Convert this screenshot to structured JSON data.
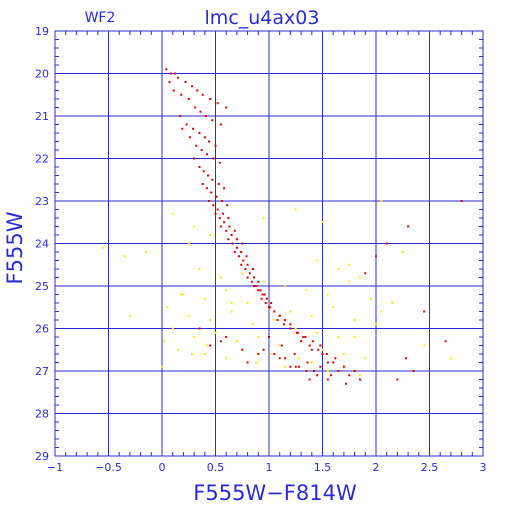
{
  "chart_data": {
    "type": "scatter",
    "title": "lmc_u4ax03",
    "panel_label": "WF2",
    "xlabel": "F555W−F814W",
    "ylabel": "F555W",
    "xlim": [
      -1,
      3
    ],
    "ylim": [
      29,
      19
    ],
    "y_inverted": true,
    "grid": true,
    "x_ticks": [
      -1,
      -0.5,
      0,
      0.5,
      1,
      1.5,
      2,
      2.5,
      3
    ],
    "x_tick_labels": [
      "−1",
      "−0.5",
      "0",
      "0.5",
      "1",
      "1.5",
      "2",
      "2.5",
      "3"
    ],
    "y_ticks": [
      19,
      20,
      21,
      22,
      23,
      24,
      25,
      26,
      27,
      28,
      29
    ],
    "y_tick_labels": [
      "19",
      "20",
      "21",
      "22",
      "23",
      "24",
      "25",
      "26",
      "27",
      "28",
      "29"
    ],
    "colors": {
      "frame": "#2b2bd6",
      "grid": "#2b2bd6",
      "series_primary": "#e00000",
      "series_secondary": "#ffea00"
    },
    "series": [
      {
        "color": "#e00000",
        "x": [
          0.04,
          0.08,
          0.12,
          0.15,
          0.22,
          0.28,
          0.33,
          0.38,
          0.45,
          0.52,
          0.6,
          0.07,
          0.11,
          0.18,
          0.25,
          0.31,
          0.36,
          0.41,
          0.47,
          0.55,
          0.17,
          0.23,
          0.29,
          0.35,
          0.4,
          0.44,
          0.5,
          0.19,
          0.26,
          0.32,
          0.37,
          0.42,
          0.48,
          0.54,
          0.3,
          0.35,
          0.39,
          0.43,
          0.47,
          0.53,
          0.58,
          0.38,
          0.42,
          0.46,
          0.51,
          0.56,
          0.61,
          0.44,
          0.48,
          0.52,
          0.57,
          0.62,
          0.5,
          0.54,
          0.58,
          0.63,
          0.68,
          0.55,
          0.6,
          0.65,
          0.7,
          0.75,
          0.62,
          0.66,
          0.7,
          0.74,
          0.79,
          0.68,
          0.72,
          0.76,
          0.8,
          0.85,
          0.74,
          0.78,
          0.82,
          0.86,
          0.9,
          0.8,
          0.84,
          0.88,
          0.92,
          0.96,
          0.86,
          0.9,
          0.94,
          0.98,
          1.02,
          0.93,
          0.97,
          1.01,
          1.05,
          1.1,
          1.0,
          1.05,
          1.1,
          1.15,
          1.2,
          1.08,
          1.14,
          1.2,
          1.26,
          1.32,
          1.2,
          1.27,
          1.34,
          1.41,
          1.48,
          1.3,
          1.38,
          1.46,
          1.54,
          1.62,
          1.4,
          1.5,
          1.6,
          1.7,
          1.8,
          1.55,
          1.65,
          1.75,
          1.85,
          1.05,
          1.15,
          1.25,
          1.35,
          1.45,
          1.55,
          1.0,
          1.12,
          1.24,
          1.36,
          1.48,
          0.95,
          1.1,
          1.28,
          1.42,
          1.58,
          1.72,
          0.45,
          0.6,
          0.75,
          0.9,
          0.35,
          0.55,
          0.8,
          2.1,
          2.45,
          2.65,
          2.28,
          2.3,
          2.8,
          1.9,
          2.0,
          2.2,
          2.35,
          1.2,
          1.38
        ],
        "y": [
          19.9,
          20.0,
          20.0,
          20.1,
          20.2,
          20.3,
          20.4,
          20.5,
          20.6,
          20.7,
          20.8,
          20.2,
          20.4,
          20.5,
          20.6,
          20.8,
          20.9,
          21.0,
          21.1,
          21.2,
          21.0,
          21.2,
          21.3,
          21.4,
          21.5,
          21.6,
          21.7,
          21.3,
          21.5,
          21.7,
          21.8,
          21.9,
          22.0,
          22.1,
          22.0,
          22.2,
          22.3,
          22.4,
          22.5,
          22.6,
          22.7,
          22.6,
          22.7,
          22.8,
          22.9,
          23.0,
          23.1,
          23.0,
          23.1,
          23.2,
          23.3,
          23.4,
          23.3,
          23.4,
          23.5,
          23.6,
          23.7,
          23.6,
          23.7,
          23.8,
          23.9,
          24.0,
          23.9,
          24.0,
          24.1,
          24.2,
          24.3,
          24.2,
          24.3,
          24.4,
          24.5,
          24.6,
          24.5,
          24.6,
          24.7,
          24.8,
          24.9,
          24.8,
          24.9,
          25.0,
          25.1,
          25.2,
          25.0,
          25.1,
          25.2,
          25.3,
          25.4,
          25.3,
          25.4,
          25.5,
          25.6,
          25.7,
          25.5,
          25.6,
          25.7,
          25.8,
          25.9,
          25.8,
          25.9,
          26.0,
          26.1,
          26.2,
          26.0,
          26.1,
          26.2,
          26.3,
          26.4,
          26.3,
          26.4,
          26.5,
          26.6,
          26.7,
          26.5,
          26.6,
          26.8,
          26.9,
          27.0,
          26.8,
          27.0,
          27.1,
          27.2,
          26.6,
          26.7,
          26.9,
          27.0,
          27.1,
          27.2,
          26.2,
          26.4,
          26.6,
          26.8,
          26.9,
          26.5,
          26.7,
          26.9,
          27.0,
          27.1,
          27.3,
          26.4,
          26.2,
          26.5,
          26.6,
          26.0,
          26.3,
          26.8,
          24.0,
          25.6,
          26.3,
          26.7,
          23.6,
          23.0,
          24.7,
          24.3,
          27.2,
          27.0,
          26.9,
          27.2
        ]
      },
      {
        "color": "#ffea00",
        "x": [
          0.02,
          0.15,
          0.28,
          0.42,
          0.6,
          0.75,
          0.88,
          1.02,
          1.15,
          1.28,
          1.4,
          1.55,
          1.7,
          1.85,
          0.1,
          0.3,
          0.5,
          0.7,
          0.9,
          1.1,
          1.3,
          1.5,
          1.7,
          1.9,
          0.05,
          0.25,
          0.45,
          0.65,
          0.85,
          1.05,
          1.25,
          1.45,
          1.65,
          0.2,
          0.4,
          0.6,
          0.8,
          1.0,
          1.2,
          1.4,
          1.6,
          1.8,
          2.0,
          0.35,
          0.55,
          0.75,
          0.95,
          1.15,
          1.35,
          1.55,
          1.75,
          1.95,
          2.15,
          -0.55,
          -0.35,
          -0.15,
          0.25,
          0.45,
          0.95,
          1.25,
          1.45,
          1.65,
          1.85,
          2.05,
          2.25,
          0.1,
          0.3,
          0.7,
          1.5,
          1.75,
          2.45,
          2.7,
          -0.3,
          0.18,
          0.65,
          1.8,
          2.05,
          0.0,
          0.4
        ],
        "y": [
          26.3,
          26.5,
          26.6,
          26.4,
          26.7,
          26.5,
          26.8,
          26.6,
          26.9,
          26.7,
          26.8,
          27.0,
          26.9,
          27.1,
          26.0,
          26.2,
          26.1,
          26.3,
          26.2,
          26.4,
          26.3,
          26.5,
          26.6,
          26.7,
          25.5,
          25.7,
          25.8,
          25.6,
          25.9,
          25.8,
          26.0,
          26.1,
          26.2,
          25.2,
          25.3,
          25.1,
          25.4,
          25.5,
          25.6,
          25.7,
          25.5,
          25.8,
          25.9,
          24.6,
          24.8,
          24.7,
          24.9,
          25.0,
          25.1,
          25.2,
          24.9,
          25.3,
          25.4,
          24.1,
          24.3,
          24.2,
          24.0,
          23.8,
          23.4,
          23.2,
          24.4,
          24.6,
          24.8,
          23.0,
          24.2,
          23.3,
          23.6,
          23.9,
          23.5,
          24.5,
          26.4,
          26.7,
          25.7,
          25.2,
          25.4,
          26.2,
          25.6,
          26.9,
          26.6
        ]
      }
    ]
  }
}
